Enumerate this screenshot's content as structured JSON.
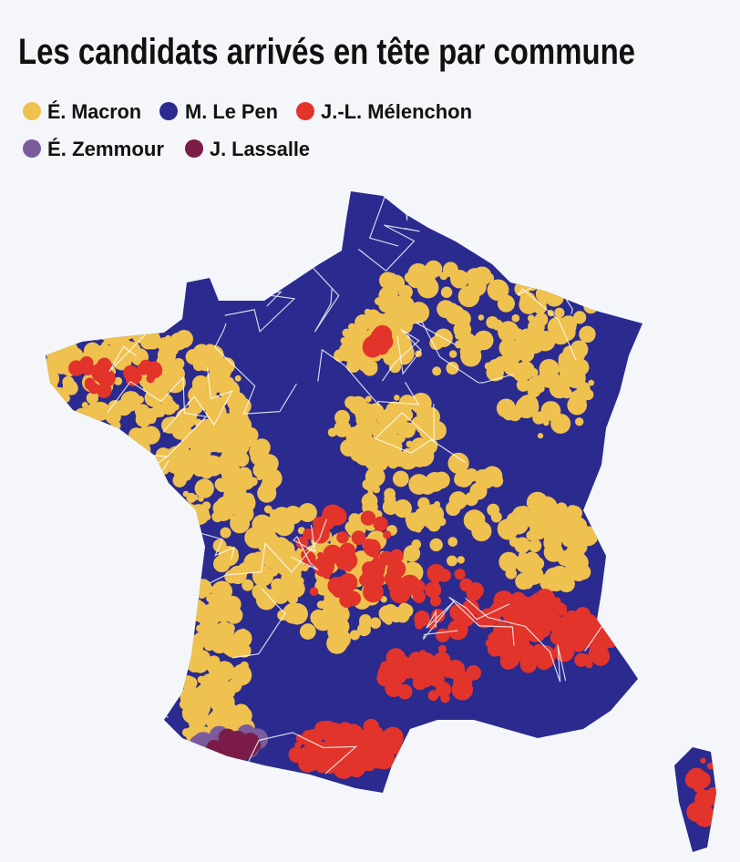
{
  "title": "Les candidats arrivés en tête par commune",
  "legend": [
    {
      "label": "É. Macron",
      "color": "#efc14f"
    },
    {
      "label": "M. Le Pen",
      "color": "#2a2a8f"
    },
    {
      "label": "J.-L. Mélenchon",
      "color": "#e2342b"
    },
    {
      "label": "É. Zemmour",
      "color": "#7a5b9c"
    },
    {
      "label": "J. Lassalle",
      "color": "#7a1c47"
    }
  ]
}
